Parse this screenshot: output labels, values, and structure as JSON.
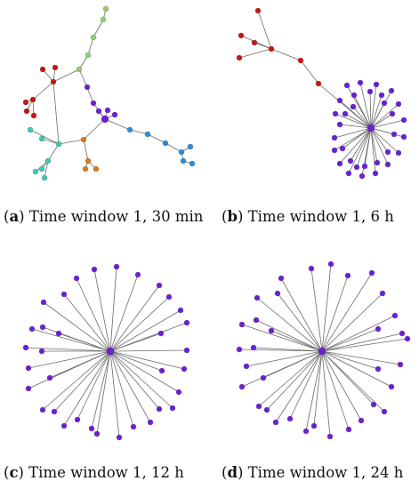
{
  "colors": {
    "purple": "#6a1fd8",
    "red": "#c81414",
    "green": "#8ed16a",
    "cyan": "#3fc9b4",
    "blue": "#2a8ed6",
    "orange": "#d97a1f",
    "edge": "#6b6b6b"
  },
  "panels": [
    {
      "letter": "a",
      "caption": "Time window 1, 30 min"
    },
    {
      "letter": "b",
      "caption": "Time window 1, 6 h"
    },
    {
      "letter": "c",
      "caption": "Time window 1, 12 h"
    },
    {
      "letter": "d",
      "caption": "Time window 1, 24 h"
    }
  ]
}
